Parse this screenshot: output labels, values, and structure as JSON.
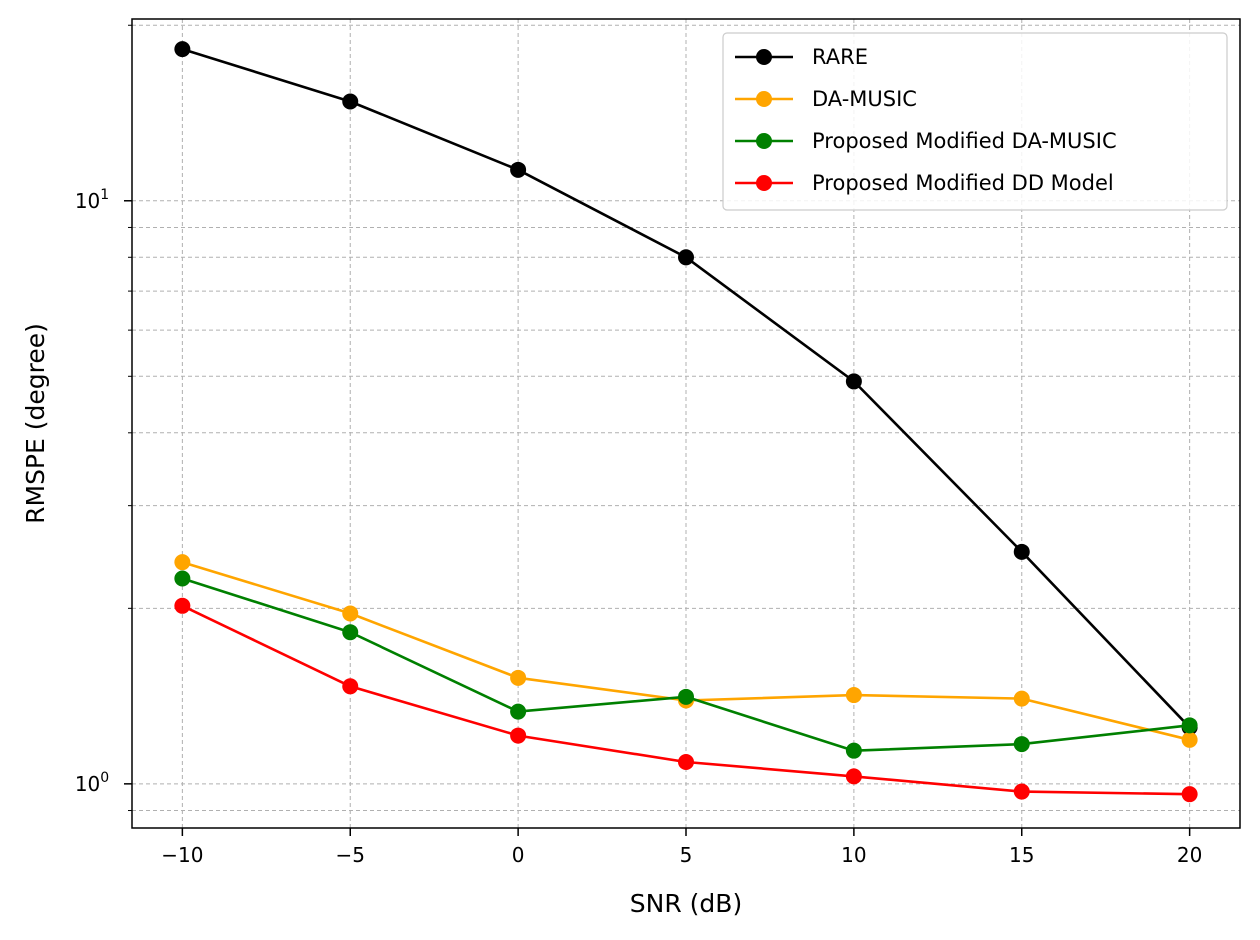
{
  "chart_data": {
    "type": "line",
    "title": "",
    "xlabel": "SNR (dB)",
    "ylabel": "RMSPE (degree)",
    "x": [
      -10,
      -5,
      0,
      5,
      10,
      15,
      20
    ],
    "x_tick_labels": [
      "−10",
      "−5",
      "0",
      "5",
      "10",
      "15",
      "20"
    ],
    "xlim": [
      -11.5,
      21.5
    ],
    "yscale": "log",
    "ylim": [
      0.84,
      20.5
    ],
    "y_major_ticks": [
      {
        "value": 1,
        "base": "10",
        "exp": "0"
      },
      {
        "value": 10,
        "base": "10",
        "exp": "1"
      }
    ],
    "y_minor_ticks": [
      0.9,
      2,
      3,
      4,
      5,
      6,
      7,
      8,
      9,
      20
    ],
    "grid": true,
    "legend_position": "top-right",
    "series": [
      {
        "name": "RARE",
        "color": "#000000",
        "values": [
          18.2,
          14.8,
          11.3,
          8.0,
          4.9,
          2.5,
          1.25
        ]
      },
      {
        "name": "DA-MUSIC",
        "color": "#ffa500",
        "values": [
          2.4,
          1.96,
          1.52,
          1.39,
          1.42,
          1.4,
          1.19
        ]
      },
      {
        "name": "Proposed Modified DA-MUSIC",
        "color": "#008000",
        "values": [
          2.25,
          1.82,
          1.33,
          1.41,
          1.14,
          1.17,
          1.26
        ]
      },
      {
        "name": "Proposed Modified DD Model",
        "color": "#ff0000",
        "values": [
          2.02,
          1.47,
          1.21,
          1.09,
          1.03,
          0.97,
          0.96
        ]
      }
    ]
  }
}
